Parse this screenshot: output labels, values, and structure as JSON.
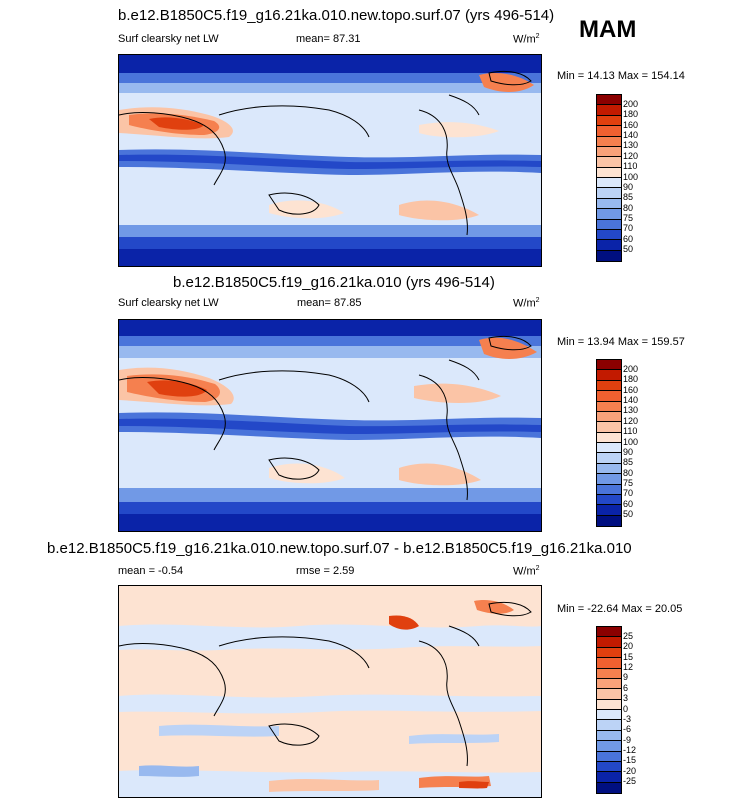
{
  "season": "MAM",
  "panels": [
    {
      "title": "b.e12.B1850C5.f19_g16.21ka.010.new.topo.surf.07 (yrs 496-514)",
      "left_label": "Surf clearsky net LW",
      "stat1": "mean=  87.31",
      "stat2": "",
      "units": "W/m",
      "units_sup": "2",
      "minmax": "Min =  14.13 Max = 154.14",
      "levels": [
        "200",
        "180",
        "160",
        "140",
        "130",
        "120",
        "110",
        "100",
        "90",
        "85",
        "80",
        "75",
        "70",
        "60",
        "50"
      ],
      "colors": [
        "#8b0000",
        "#c21a00",
        "#e0400f",
        "#f06030",
        "#f5804f",
        "#f9a27a",
        "#fbc4a6",
        "#fde3d2",
        "#dbe8fb",
        "#bcd3f6",
        "#98b9ef",
        "#7199e6",
        "#4a74da",
        "#2348c8",
        "#0a23a8",
        "#000f80"
      ]
    },
    {
      "title": "b.e12.B1850C5.f19_g16.21ka.010 (yrs 496-514)",
      "left_label": "Surf clearsky net LW",
      "stat1": "mean=  87.85",
      "stat2": "",
      "units": "W/m",
      "units_sup": "2",
      "minmax": "Min =  13.94 Max = 159.57",
      "levels": [
        "200",
        "180",
        "160",
        "140",
        "130",
        "120",
        "110",
        "100",
        "90",
        "85",
        "80",
        "75",
        "70",
        "60",
        "50"
      ],
      "colors": [
        "#8b0000",
        "#c21a00",
        "#e0400f",
        "#f06030",
        "#f5804f",
        "#f9a27a",
        "#fbc4a6",
        "#fde3d2",
        "#dbe8fb",
        "#bcd3f6",
        "#98b9ef",
        "#7199e6",
        "#4a74da",
        "#2348c8",
        "#0a23a8",
        "#000f80"
      ]
    },
    {
      "title": "b.e12.B1850C5.f19_g16.21ka.010.new.topo.surf.07 - b.e12.B1850C5.f19_g16.21ka.010",
      "left_label": "mean =  -0.54",
      "stat1": "",
      "stat2": "rmse =   2.59",
      "units": "W/m",
      "units_sup": "2",
      "minmax": "Min = -22.64 Max =  20.05",
      "levels": [
        "25",
        "20",
        "15",
        "12",
        "9",
        "6",
        "3",
        "0",
        "-3",
        "-6",
        "-9",
        "-12",
        "-15",
        "-20",
        "-25"
      ],
      "colors": [
        "#8b0000",
        "#c21a00",
        "#e0400f",
        "#f06030",
        "#f5804f",
        "#f9a27a",
        "#fbc4a6",
        "#fde3d2",
        "#dbe8fb",
        "#bcd3f6",
        "#98b9ef",
        "#7199e6",
        "#4a74da",
        "#2348c8",
        "#0a23a8",
        "#000f80"
      ]
    }
  ]
}
